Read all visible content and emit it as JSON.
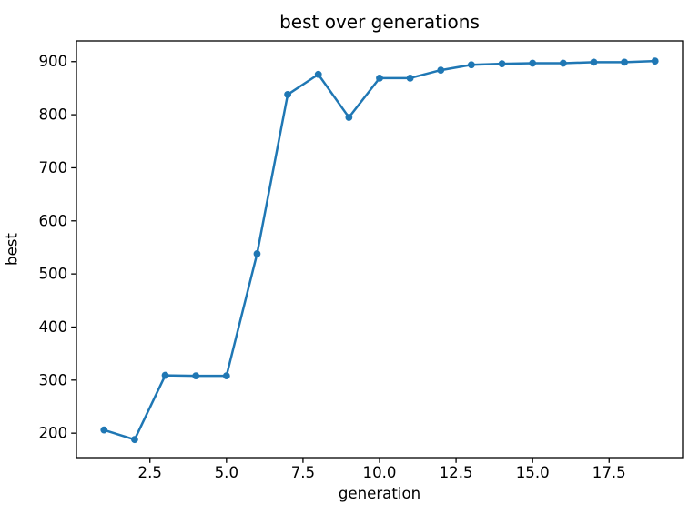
{
  "figure": {
    "background_color": "#ffffff"
  },
  "chart_data": {
    "type": "line",
    "title": "best over generations",
    "xlabel": "generation",
    "ylabel": "best",
    "x": [
      1,
      2,
      3,
      4,
      5,
      6,
      7,
      8,
      9,
      10,
      11,
      12,
      13,
      14,
      15,
      16,
      17,
      18,
      19
    ],
    "y": [
      206,
      188,
      309,
      308,
      308,
      538,
      838,
      876,
      795,
      869,
      869,
      884,
      894,
      896,
      897,
      897,
      899,
      899,
      901
    ],
    "series_name": "best",
    "line_color": "#1f77b4",
    "marker": "o",
    "marker_color": "#1f77b4",
    "axis_color": "#000000",
    "grid": false,
    "legend": null,
    "xlim": [
      0.1,
      19.9
    ],
    "ylim": [
      154,
      939
    ],
    "x_ticks": [
      2.5,
      5.0,
      7.5,
      10.0,
      12.5,
      15.0,
      17.5
    ],
    "x_tick_labels": [
      "2.5",
      "5.0",
      "7.5",
      "10.0",
      "12.5",
      "15.0",
      "17.5"
    ],
    "y_ticks": [
      200,
      300,
      400,
      500,
      600,
      700,
      800,
      900
    ],
    "y_tick_labels": [
      "200",
      "300",
      "400",
      "500",
      "600",
      "700",
      "800",
      "900"
    ]
  }
}
